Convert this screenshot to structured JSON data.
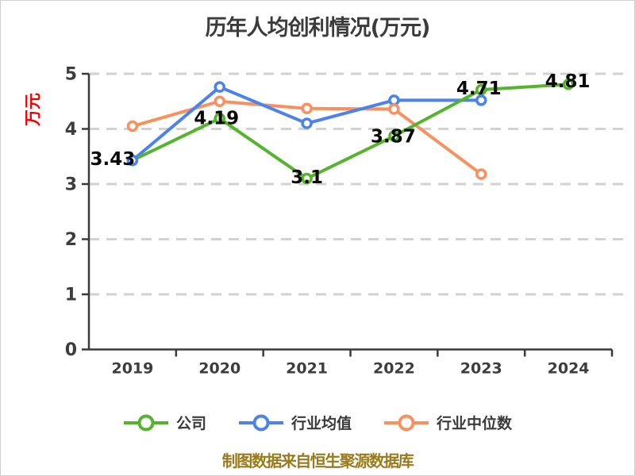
{
  "title": "历年人均创利情况(万元)",
  "y_axis_label": "万元",
  "footer": "制图数据来自恒生聚源数据库",
  "colors": {
    "grid": "#d2d2d2",
    "axis": "#3a3a3a",
    "tick_label": "#3d3d3d",
    "value_label": "#0a0a0a",
    "ylabel_red": "#f20000",
    "footer_gold": "#9a7a1b"
  },
  "chart_data": {
    "type": "line",
    "title": "历年人均创利情况(万元)",
    "ylabel": "万元",
    "categories": [
      "2019",
      "2020",
      "2021",
      "2022",
      "2023",
      "2024"
    ],
    "series": [
      {
        "name": "公司",
        "color": "#55b42d",
        "values": [
          3.43,
          4.19,
          3.1,
          3.87,
          4.71,
          4.81
        ],
        "labels": [
          "3.43",
          "4.19",
          "3.1",
          "3.87",
          "4.71",
          "4.81"
        ],
        "label_offsets": [
          [
            -25,
            -2
          ],
          [
            -4,
            -1
          ],
          [
            0,
            -2
          ],
          [
            -1,
            0
          ],
          [
            -3,
            -2
          ],
          [
            -1,
            -4
          ]
        ]
      },
      {
        "name": "行业均值",
        "color": "#4b82eb",
        "values": [
          3.43,
          4.76,
          4.1,
          4.52,
          4.52,
          null
        ]
      },
      {
        "name": "行业中位数",
        "color": "#f8915f",
        "values": [
          4.05,
          4.5,
          4.37,
          4.36,
          3.18,
          null
        ]
      }
    ],
    "ylim": [
      0,
      5
    ],
    "yticks": [
      0,
      1,
      2,
      3,
      4,
      5
    ],
    "grid": "horizontal-dashed",
    "legend_position": "bottom",
    "marker": "circle-white-fill"
  }
}
